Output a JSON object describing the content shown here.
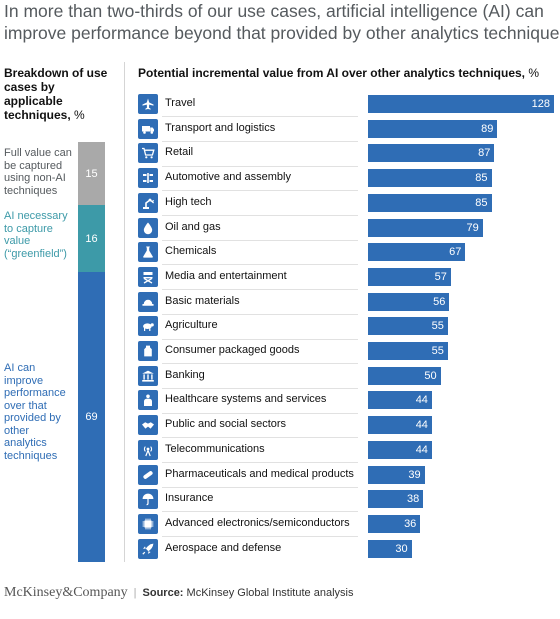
{
  "title_lines": [
    "In more than two-thirds of our use cases, artificial intelligence (AI) can",
    "improve performance beyond that provided by other analytics techniques."
  ],
  "left_header": {
    "text": "Breakdown of use cases by applicable techniques,",
    "unit": "%"
  },
  "right_header": {
    "text": "Potential incremental value from AI over other analytics techniques,",
    "unit": "%"
  },
  "colors": {
    "gray": "#a9a9a9",
    "teal": "#3d9aa8",
    "blue": "#2f6db5"
  },
  "chart_data": [
    {
      "type": "bar",
      "stacked": true,
      "xlabel": "",
      "ylabel": "",
      "series": [
        {
          "name": "Full value can be captured using non-AI techniques",
          "value": 15
        },
        {
          "name": "AI necessary to capture value (“greenfield”)",
          "value": 16
        },
        {
          "name": "AI can improve performance over that provided by other analytics techniques",
          "value": 69
        }
      ]
    },
    {
      "type": "bar",
      "orientation": "horizontal",
      "xlabel": "",
      "ylabel": "",
      "xlim": [
        0,
        128
      ],
      "categories": [
        "Travel",
        "Transport and logistics",
        "Retail",
        "Automotive and assembly",
        "High tech",
        "Oil and gas",
        "Chemicals",
        "Media and entertainment",
        "Basic materials",
        "Agriculture",
        "Consumer packaged goods",
        "Banking",
        "Healthcare systems and services",
        "Public and social sectors",
        "Telecommunications",
        "Pharmaceuticals and medical products",
        "Insurance",
        "Advanced electronics/semiconductors",
        "Aerospace and defense"
      ],
      "values": [
        128,
        89,
        87,
        85,
        85,
        79,
        67,
        57,
        56,
        55,
        55,
        50,
        44,
        44,
        44,
        39,
        38,
        36,
        30
      ],
      "icons": [
        "plane-icon",
        "truck-icon",
        "cart-icon",
        "car-chassis-icon",
        "robot-arm-icon",
        "oil-drop-icon",
        "flask-icon",
        "director-chair-icon",
        "hard-hat-icon",
        "cow-icon",
        "package-icon",
        "bank-icon",
        "medical-icon",
        "handshake-icon",
        "antenna-icon",
        "pills-icon",
        "umbrella-icon",
        "chip-icon",
        "rocket-icon"
      ]
    }
  ],
  "footer": {
    "brand": "McKinsey&Company",
    "source_label": "Source:",
    "source_text": "McKinsey Global Institute analysis"
  }
}
